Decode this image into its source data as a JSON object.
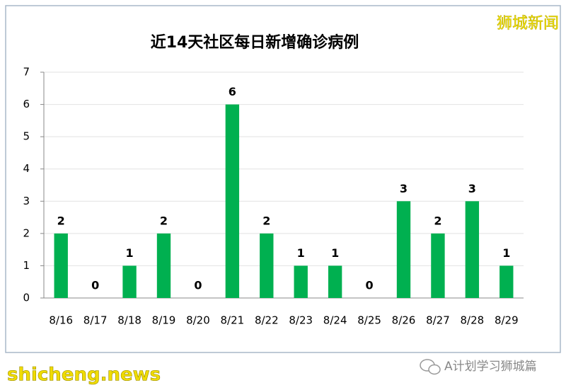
{
  "chart_data": {
    "type": "bar",
    "title": "近14天社区每日新增确诊病例",
    "categories": [
      "8/16",
      "8/17",
      "8/18",
      "8/19",
      "8/20",
      "8/21",
      "8/22",
      "8/23",
      "8/24",
      "8/25",
      "8/26",
      "8/27",
      "8/28",
      "8/29"
    ],
    "values": [
      2,
      0,
      1,
      2,
      0,
      6,
      2,
      1,
      1,
      0,
      3,
      2,
      3,
      1
    ],
    "color": "#00b050",
    "ylim": [
      0,
      7
    ],
    "yticks": [
      0,
      1,
      2,
      3,
      4,
      5,
      6,
      7
    ],
    "grid": true
  },
  "watermarks": [
    "狮城新闻",
    "shicheng.news",
    "A计划学习狮城篇"
  ]
}
